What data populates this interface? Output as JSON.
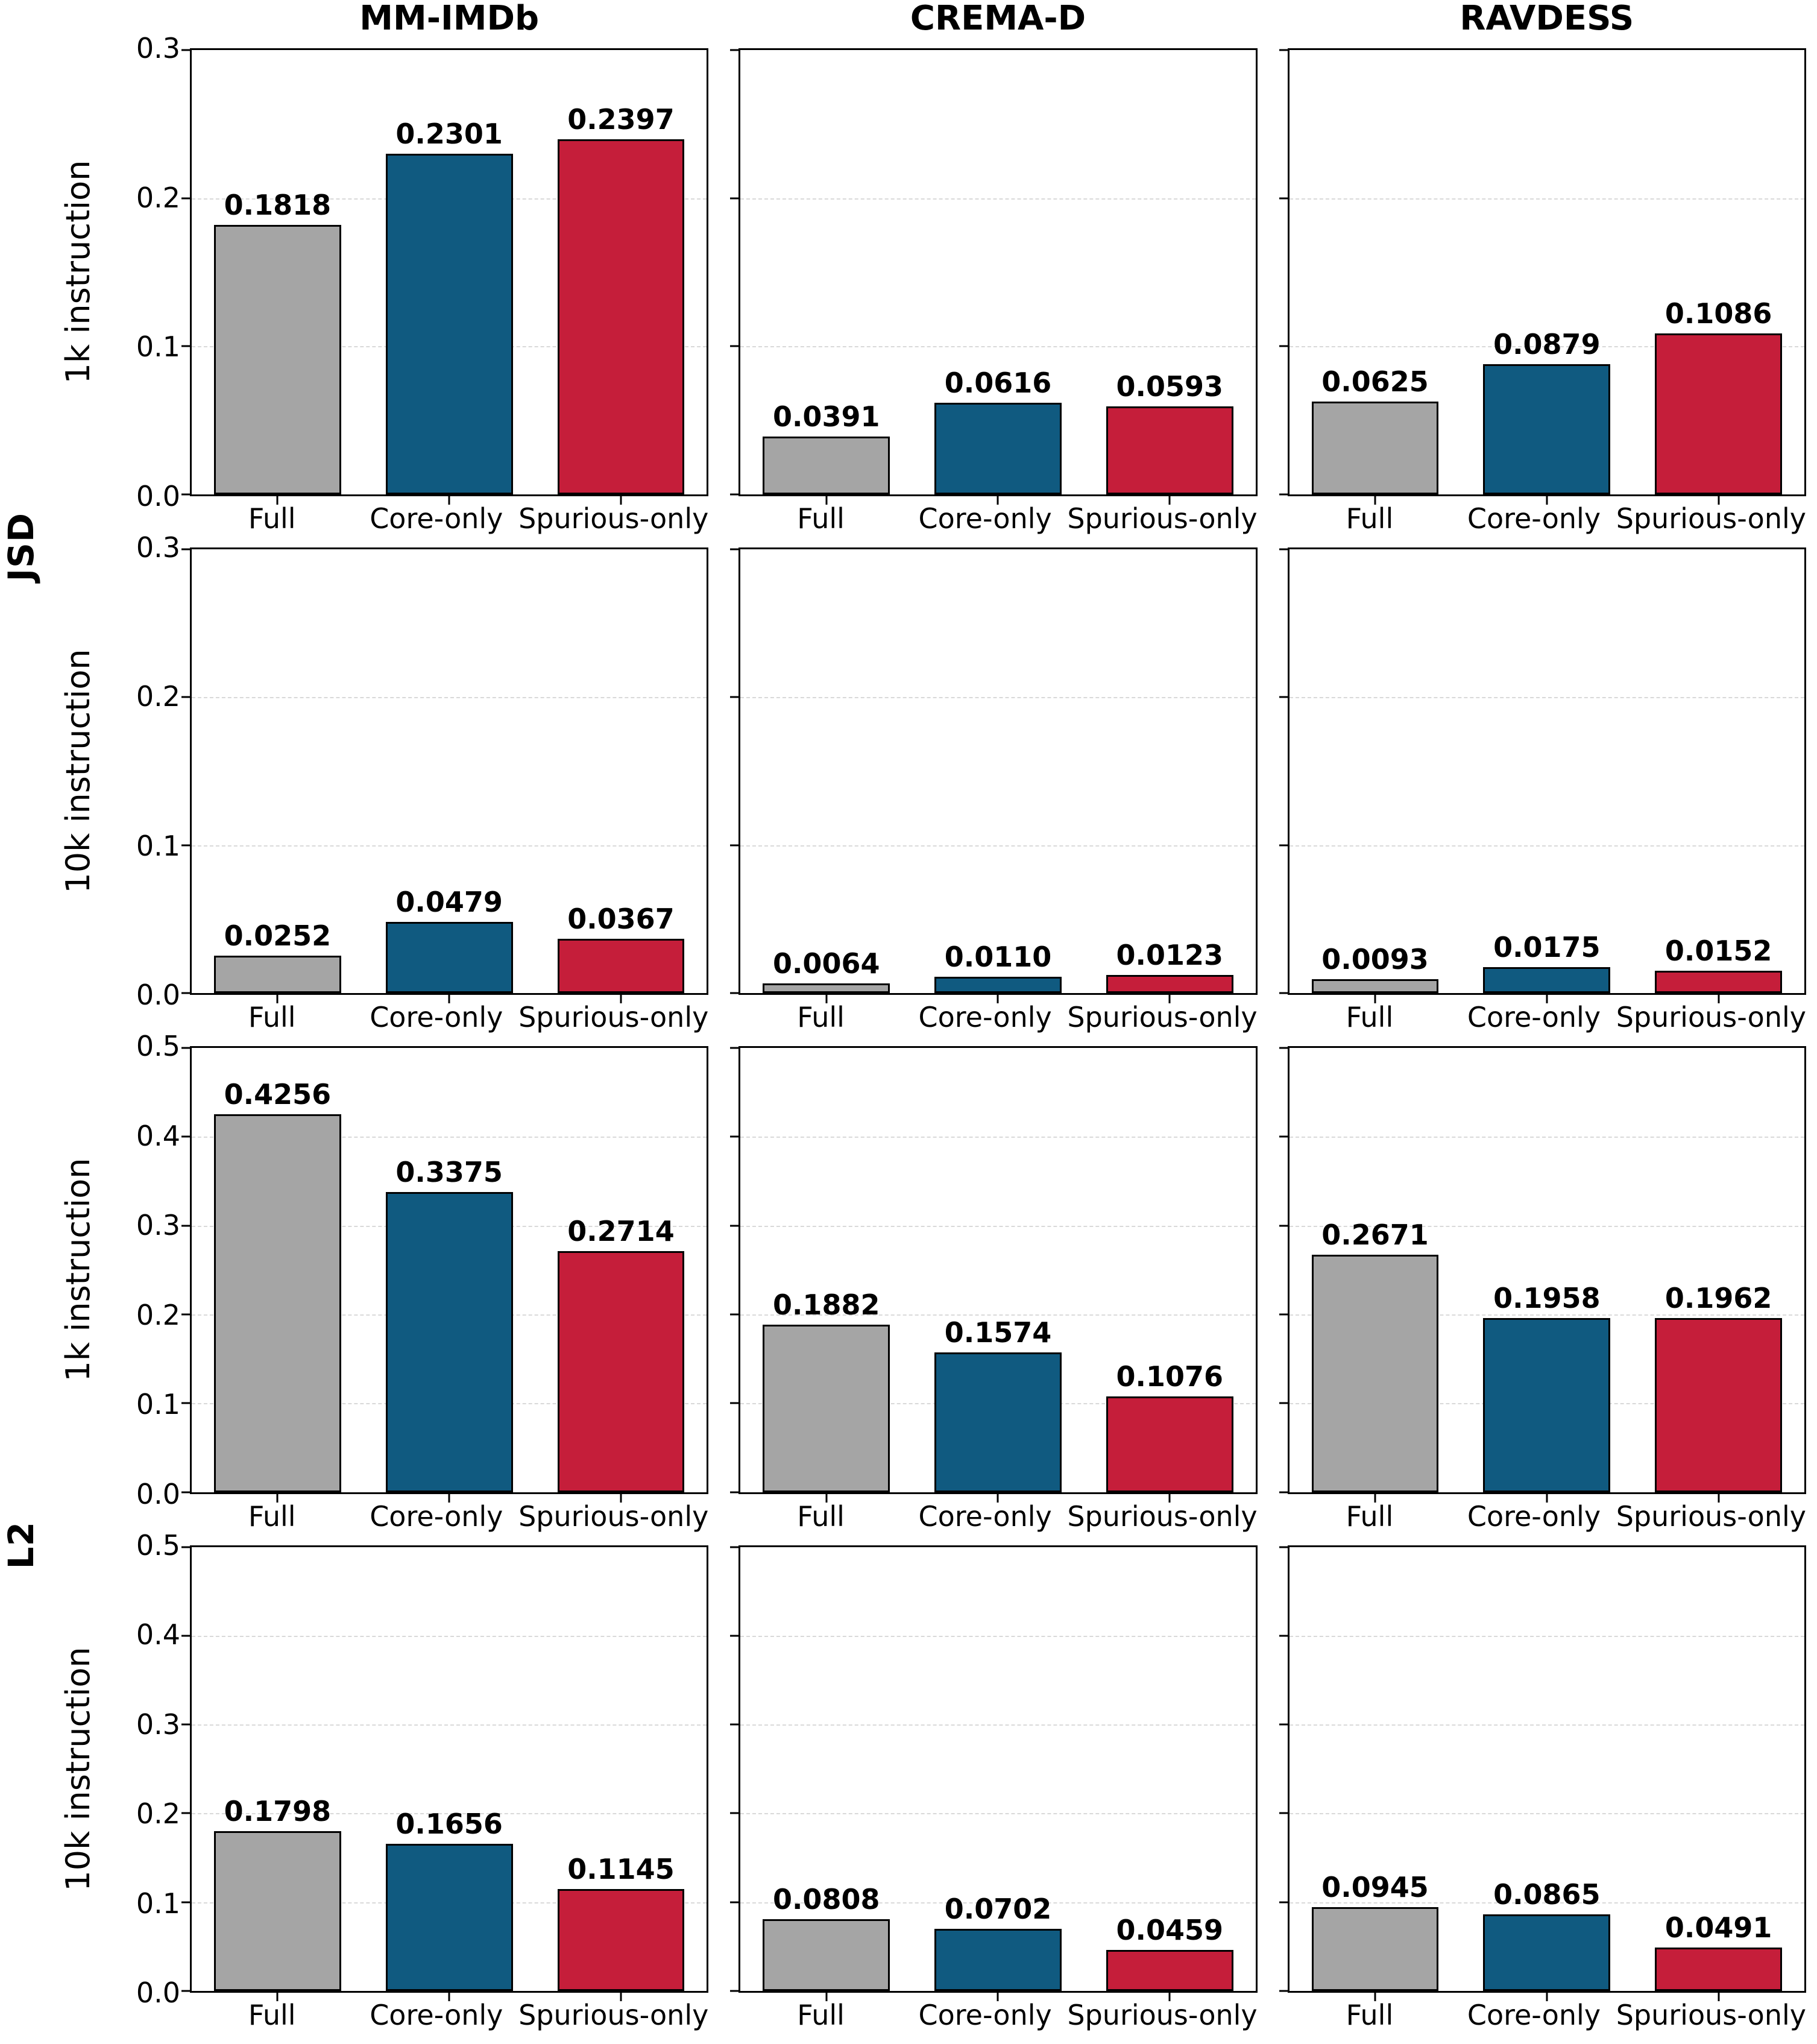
{
  "figure": {
    "column_titles": [
      "MM-IMDb",
      "CREMA-D",
      "RAVDESS"
    ],
    "group_labels": [
      "JSD",
      "L2"
    ],
    "categories": [
      "Full",
      "Core-only",
      "Spurious-only"
    ],
    "bar_colors": [
      "#a5a5a5",
      "#105a80",
      "#c51e3a"
    ],
    "bar_edge_color": "#000000",
    "grid_color": "#d9d9d9",
    "rows": [
      {
        "group": "JSD",
        "ylabel": "1k instruction",
        "ymax": 0.3,
        "yticks": [
          "0.0",
          "0.1",
          "0.2",
          "0.3"
        ]
      },
      {
        "group": "JSD",
        "ylabel": "10k instruction",
        "ymax": 0.3,
        "yticks": [
          "0.0",
          "0.1",
          "0.2",
          "0.3"
        ]
      },
      {
        "group": "L2",
        "ylabel": "1k instruction",
        "ymax": 0.5,
        "yticks": [
          "0.0",
          "0.1",
          "0.2",
          "0.3",
          "0.4",
          "0.5"
        ]
      },
      {
        "group": "L2",
        "ylabel": "10k instruction",
        "ymax": 0.5,
        "yticks": [
          "0.0",
          "0.1",
          "0.2",
          "0.3",
          "0.4",
          "0.5"
        ]
      }
    ]
  },
  "chart_data": [
    {
      "type": "bar",
      "row": 0,
      "group": "JSD",
      "row_label": "1k instruction",
      "dataset": "MM-IMDb",
      "categories": [
        "Full",
        "Core-only",
        "Spurious-only"
      ],
      "values": [
        0.1818,
        0.2301,
        0.2397
      ],
      "value_labels": [
        "0.1818",
        "0.2301",
        "0.2397"
      ],
      "ylim": [
        0,
        0.3
      ],
      "grid": true,
      "legend": "none"
    },
    {
      "type": "bar",
      "row": 0,
      "group": "JSD",
      "row_label": "1k instruction",
      "dataset": "CREMA-D",
      "categories": [
        "Full",
        "Core-only",
        "Spurious-only"
      ],
      "values": [
        0.0391,
        0.0616,
        0.0593
      ],
      "value_labels": [
        "0.0391",
        "0.0616",
        "0.0593"
      ],
      "ylim": [
        0,
        0.3
      ],
      "grid": true,
      "legend": "none"
    },
    {
      "type": "bar",
      "row": 0,
      "group": "JSD",
      "row_label": "1k instruction",
      "dataset": "RAVDESS",
      "categories": [
        "Full",
        "Core-only",
        "Spurious-only"
      ],
      "values": [
        0.0625,
        0.0879,
        0.1086
      ],
      "value_labels": [
        "0.0625",
        "0.0879",
        "0.1086"
      ],
      "ylim": [
        0,
        0.3
      ],
      "grid": true,
      "legend": "none"
    },
    {
      "type": "bar",
      "row": 1,
      "group": "JSD",
      "row_label": "10k instruction",
      "dataset": "MM-IMDb",
      "categories": [
        "Full",
        "Core-only",
        "Spurious-only"
      ],
      "values": [
        0.0252,
        0.0479,
        0.0367
      ],
      "value_labels": [
        "0.0252",
        "0.0479",
        "0.0367"
      ],
      "ylim": [
        0,
        0.3
      ],
      "grid": true,
      "legend": "none"
    },
    {
      "type": "bar",
      "row": 1,
      "group": "JSD",
      "row_label": "10k instruction",
      "dataset": "CREMA-D",
      "categories": [
        "Full",
        "Core-only",
        "Spurious-only"
      ],
      "values": [
        0.0064,
        0.011,
        0.0123
      ],
      "value_labels": [
        "0.0064",
        "0.0110",
        "0.0123"
      ],
      "ylim": [
        0,
        0.3
      ],
      "grid": true,
      "legend": "none"
    },
    {
      "type": "bar",
      "row": 1,
      "group": "JSD",
      "row_label": "10k instruction",
      "dataset": "RAVDESS",
      "categories": [
        "Full",
        "Core-only",
        "Spurious-only"
      ],
      "values": [
        0.0093,
        0.0175,
        0.0152
      ],
      "value_labels": [
        "0.0093",
        "0.0175",
        "0.0152"
      ],
      "ylim": [
        0,
        0.3
      ],
      "grid": true,
      "legend": "none"
    },
    {
      "type": "bar",
      "row": 2,
      "group": "L2",
      "row_label": "1k instruction",
      "dataset": "MM-IMDb",
      "categories": [
        "Full",
        "Core-only",
        "Spurious-only"
      ],
      "values": [
        0.4256,
        0.3375,
        0.2714
      ],
      "value_labels": [
        "0.4256",
        "0.3375",
        "0.2714"
      ],
      "ylim": [
        0,
        0.5
      ],
      "grid": true,
      "legend": "none"
    },
    {
      "type": "bar",
      "row": 2,
      "group": "L2",
      "row_label": "1k instruction",
      "dataset": "CREMA-D",
      "categories": [
        "Full",
        "Core-only",
        "Spurious-only"
      ],
      "values": [
        0.1882,
        0.1574,
        0.1076
      ],
      "value_labels": [
        "0.1882",
        "0.1574",
        "0.1076"
      ],
      "ylim": [
        0,
        0.5
      ],
      "grid": true,
      "legend": "none"
    },
    {
      "type": "bar",
      "row": 2,
      "group": "L2",
      "row_label": "1k instruction",
      "dataset": "RAVDESS",
      "categories": [
        "Full",
        "Core-only",
        "Spurious-only"
      ],
      "values": [
        0.2671,
        0.1958,
        0.1962
      ],
      "value_labels": [
        "0.2671",
        "0.1958",
        "0.1962"
      ],
      "ylim": [
        0,
        0.5
      ],
      "grid": true,
      "legend": "none"
    },
    {
      "type": "bar",
      "row": 3,
      "group": "L2",
      "row_label": "10k instruction",
      "dataset": "MM-IMDb",
      "categories": [
        "Full",
        "Core-only",
        "Spurious-only"
      ],
      "values": [
        0.1798,
        0.1656,
        0.1145
      ],
      "value_labels": [
        "0.1798",
        "0.1656",
        "0.1145"
      ],
      "ylim": [
        0,
        0.5
      ],
      "grid": true,
      "legend": "none"
    },
    {
      "type": "bar",
      "row": 3,
      "group": "L2",
      "row_label": "10k instruction",
      "dataset": "CREMA-D",
      "categories": [
        "Full",
        "Core-only",
        "Spurious-only"
      ],
      "values": [
        0.0808,
        0.0702,
        0.0459
      ],
      "value_labels": [
        "0.0808",
        "0.0702",
        "0.0459"
      ],
      "ylim": [
        0,
        0.5
      ],
      "grid": true,
      "legend": "none"
    },
    {
      "type": "bar",
      "row": 3,
      "group": "L2",
      "row_label": "10k instruction",
      "dataset": "RAVDESS",
      "categories": [
        "Full",
        "Core-only",
        "Spurious-only"
      ],
      "values": [
        0.0945,
        0.0865,
        0.0491
      ],
      "value_labels": [
        "0.0945",
        "0.0865",
        "0.0491"
      ],
      "ylim": [
        0,
        0.5
      ],
      "grid": true,
      "legend": "none"
    }
  ]
}
